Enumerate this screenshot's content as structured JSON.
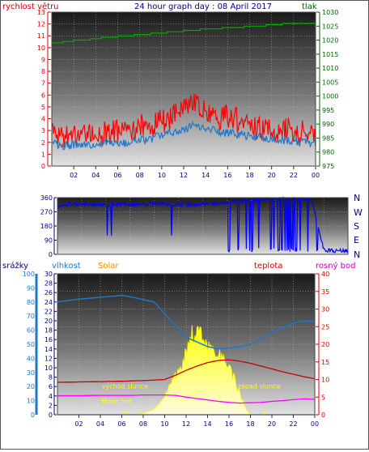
{
  "chart_data": [
    {
      "type": "line",
      "title": "24 hour graph day : 08 April 2017",
      "ylabel_left": "rychlost větru",
      "ylabel_right": "tlak",
      "x_ticks": [
        "02",
        "04",
        "06",
        "08",
        "10",
        "12",
        "14",
        "16",
        "18",
        "20",
        "22",
        "00"
      ],
      "left_axis": {
        "min": 0,
        "max": 13,
        "ticks": [
          0,
          1,
          2,
          3,
          4,
          5,
          6,
          7,
          8,
          9,
          10,
          11,
          12,
          13
        ]
      },
      "right_axis": {
        "min": 975,
        "max": 1030,
        "ticks": [
          975,
          980,
          985,
          990,
          995,
          1000,
          1005,
          1010,
          1015,
          1020,
          1025,
          1030
        ]
      },
      "series": [
        {
          "color": "#ff0000",
          "axis": "left",
          "hours": [
            0,
            1,
            2,
            3,
            4,
            5,
            6,
            7,
            8,
            9,
            10,
            11,
            12,
            12.5,
            13,
            13.5,
            14,
            15,
            16,
            17,
            18,
            19,
            20,
            21,
            22,
            23,
            24
          ],
          "values": [
            3.0,
            2.6,
            2.7,
            2.8,
            2.7,
            2.9,
            2.8,
            3.0,
            3.3,
            3.4,
            3.8,
            4.1,
            4.8,
            5.6,
            5.2,
            4.9,
            4.5,
            4.0,
            4.2,
            3.8,
            3.4,
            3.2,
            3.0,
            3.1,
            2.9,
            2.8,
            2.7
          ]
        },
        {
          "color": "#1e78c8",
          "axis": "left",
          "hours": [
            0,
            1,
            2,
            3,
            4,
            5,
            6,
            7,
            8,
            9,
            10,
            11,
            12,
            13,
            14,
            15,
            16,
            17,
            18,
            19,
            20,
            21,
            22,
            23,
            24
          ],
          "values": [
            1.9,
            1.7,
            1.8,
            1.8,
            1.9,
            1.9,
            1.8,
            2.0,
            2.2,
            2.3,
            2.6,
            2.8,
            3.0,
            3.5,
            3.2,
            2.9,
            2.8,
            2.7,
            2.5,
            2.4,
            2.3,
            2.2,
            2.1,
            2.0,
            2.0
          ]
        },
        {
          "color": "#00aa00",
          "axis": "right",
          "hours": [
            0,
            1,
            2,
            3,
            4,
            5,
            6,
            7,
            8,
            9,
            10,
            11,
            12,
            13,
            14,
            15,
            16,
            17,
            18,
            19,
            20,
            21,
            22,
            23,
            24
          ],
          "values": [
            1019.0,
            1019.3,
            1019.8,
            1020.2,
            1020.6,
            1021.0,
            1021.4,
            1021.7,
            1022.0,
            1022.3,
            1022.7,
            1023.0,
            1023.3,
            1023.6,
            1023.9,
            1024.2,
            1024.4,
            1024.7,
            1025.0,
            1025.2,
            1025.5,
            1025.8,
            1026.0,
            1026.1,
            1026.1
          ]
        }
      ]
    },
    {
      "type": "scatter",
      "x_ticks": [],
      "left_axis": {
        "min": 0,
        "max": 360,
        "ticks": [
          0,
          90,
          180,
          270,
          360
        ]
      },
      "right_labels": [
        "N",
        "E",
        "S",
        "W",
        "N"
      ],
      "series": [
        {
          "color": "#0000ff",
          "hours": [
            0,
            1,
            2,
            3,
            4,
            5,
            6,
            7,
            8,
            9,
            10,
            11,
            12,
            13,
            14,
            15,
            16,
            17,
            18,
            19,
            20,
            21,
            22,
            23,
            24
          ],
          "values": [
            300,
            315,
            320,
            318,
            316,
            318,
            320,
            317,
            318,
            320,
            316,
            315,
            318,
            320,
            330,
            340,
            345,
            350,
            352,
            355,
            355,
            350,
            30,
            20,
            25
          ]
        }
      ]
    },
    {
      "type": "area",
      "labels": {
        "rain": "srážky",
        "humidity": "vlhkost",
        "solar": "Solar",
        "temp": "teplota",
        "dew": "rosný bod"
      },
      "x_ticks": [
        "02",
        "04",
        "06",
        "08",
        "10",
        "12",
        "14",
        "16",
        "18",
        "20",
        "22",
        "00"
      ],
      "axes": {
        "rain": {
          "min": 0,
          "max": 100,
          "ticks": [
            0,
            10,
            20,
            30,
            40,
            50,
            60,
            70,
            80,
            90,
            100
          ]
        },
        "humidity": {
          "min": 0,
          "max": 30,
          "ticks": [
            0,
            2,
            4,
            6,
            8,
            10,
            12,
            14,
            16,
            18,
            20,
            22,
            24,
            26,
            28,
            30
          ]
        },
        "temp": {
          "min": 0,
          "max": 40,
          "ticks": [
            0,
            5,
            10,
            15,
            20,
            25,
            30,
            35,
            40
          ]
        }
      },
      "annotations": [
        {
          "text": "východ slunce",
          "hour": 6.3,
          "value_temp": 7.5
        },
        {
          "text": "západ slunce",
          "hour": 18.8,
          "value_temp": 7.5
        },
        {
          "text": "Moon Set",
          "hour": 5.5,
          "value_temp": 3.2
        }
      ],
      "markers": [
        6.3,
        19.3
      ],
      "series": [
        {
          "name": "Solar",
          "color": "#ffff00",
          "axis": "humidity",
          "hours": [
            0,
            5,
            6,
            7,
            8,
            9,
            10,
            11,
            12,
            12.5,
            13,
            13.5,
            14,
            14.5,
            15,
            15.5,
            16,
            16.5,
            17,
            17.5,
            18,
            24
          ],
          "values": [
            0,
            0,
            0,
            0,
            0.3,
            1.2,
            3.8,
            8.0,
            13.0,
            17.5,
            18.0,
            17.0,
            14.5,
            13.5,
            13.0,
            12.0,
            10.0,
            7.5,
            4.5,
            1.5,
            0,
            0
          ]
        },
        {
          "name": "teplota",
          "color": "#c80000",
          "axis": "temp",
          "hours": [
            0,
            2,
            4,
            6,
            8,
            10,
            11,
            12,
            13,
            14,
            15,
            16,
            17,
            18,
            19,
            20,
            21,
            22,
            23,
            24
          ],
          "values": [
            9.2,
            9.3,
            9.4,
            9.5,
            9.7,
            10.0,
            11.2,
            12.6,
            13.8,
            14.8,
            15.4,
            15.6,
            15.2,
            14.6,
            13.8,
            13.0,
            12.2,
            11.5,
            10.8,
            10.2
          ]
        },
        {
          "name": "vlhkost",
          "color": "#1e78c8",
          "axis": "humidity",
          "hours": [
            0,
            1,
            2,
            3,
            4,
            5,
            6,
            7,
            8,
            9,
            10,
            11,
            12,
            13,
            14,
            15,
            16,
            17,
            18,
            19,
            20,
            21,
            22,
            23,
            24
          ],
          "values": [
            24.0,
            24.3,
            24.6,
            24.8,
            25.0,
            25.2,
            25.4,
            25.0,
            24.5,
            24.0,
            21.5,
            19.0,
            16.5,
            15.5,
            14.5,
            14.0,
            14.2,
            14.5,
            15.0,
            16.0,
            17.5,
            18.5,
            19.5,
            20.0,
            19.8
          ]
        },
        {
          "name": "rosný bod",
          "color": "#ff00ff",
          "axis": "temp",
          "hours": [
            0,
            2,
            4,
            6,
            7,
            8,
            10,
            11,
            12,
            13,
            14,
            15,
            16,
            17,
            18,
            19,
            20,
            21,
            22,
            23,
            24
          ],
          "values": [
            5.4,
            5.4,
            5.5,
            5.5,
            5.5,
            5.6,
            5.6,
            5.5,
            5.0,
            4.6,
            4.2,
            3.8,
            3.5,
            3.3,
            3.4,
            3.5,
            3.8,
            4.0,
            4.3,
            4.5,
            4.4
          ]
        },
        {
          "name": "srážky",
          "color": "#1e78c8",
          "axis": "rain",
          "hours": [
            0,
            24
          ],
          "values": [
            0,
            0
          ]
        }
      ]
    }
  ]
}
